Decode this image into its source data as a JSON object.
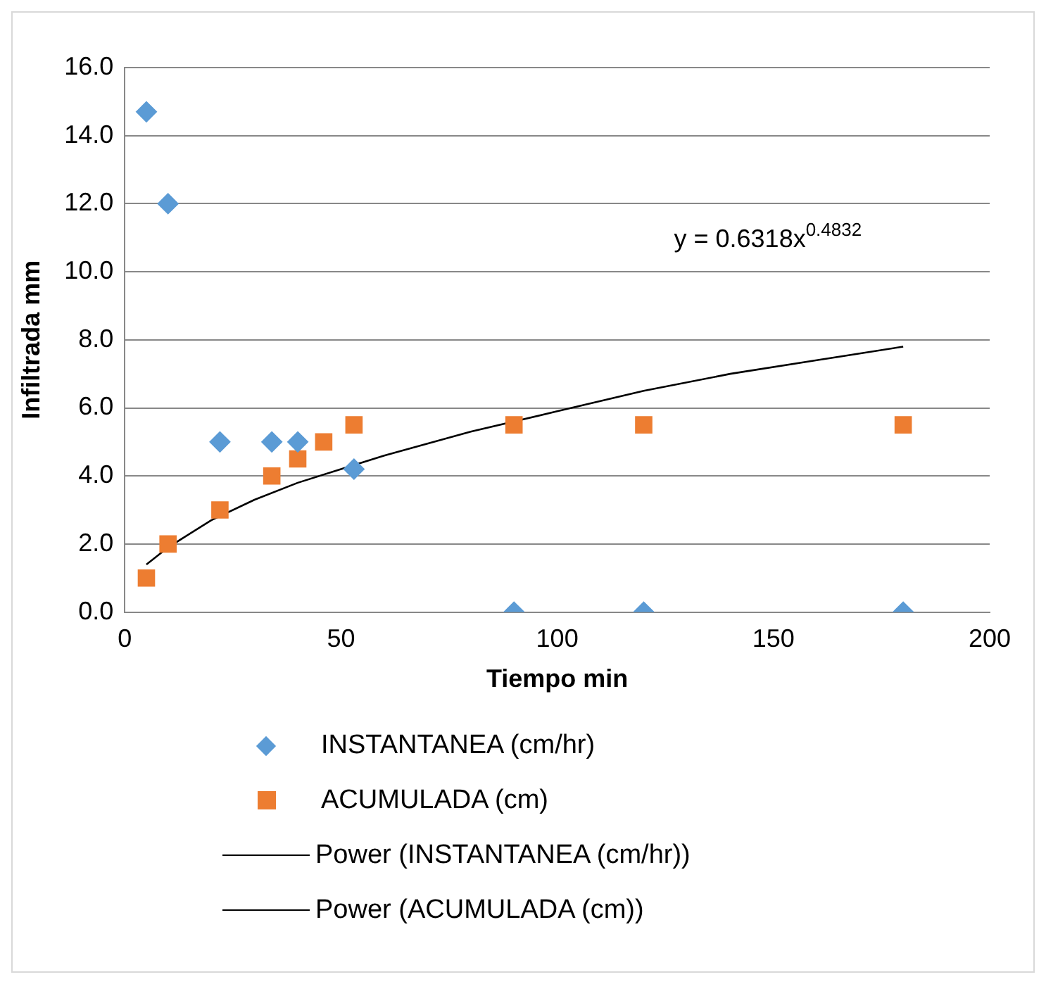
{
  "chart_data": {
    "type": "scatter",
    "xlabel": "Tiempo min",
    "ylabel": "Infiltrada mm",
    "xlim": [
      0,
      200
    ],
    "xticks": [
      0,
      50,
      100,
      150,
      200
    ],
    "ylim": [
      0,
      16
    ],
    "yticks": [
      {
        "value": 0,
        "label": "0.0"
      },
      {
        "value": 2,
        "label": "2.0"
      },
      {
        "value": 4,
        "label": "4.0"
      },
      {
        "value": 6,
        "label": "6.0"
      },
      {
        "value": 8,
        "label": "8.0"
      },
      {
        "value": 10,
        "label": "10.0"
      },
      {
        "value": 12,
        "label": "12.0"
      },
      {
        "value": 14,
        "label": "14.0"
      },
      {
        "value": 16,
        "label": "16.0"
      }
    ],
    "grid": "y",
    "legend": "bottom",
    "annotations": [
      "y = 0.6318x$^{0.4832}$"
    ],
    "series": [
      {
        "name": "INSTANTANEA (cm/hr)",
        "type": "scatter",
        "marker": "diamond",
        "color": "#5b9bd5",
        "x": [
          5,
          10,
          22,
          34,
          40,
          53,
          90,
          120,
          180
        ],
        "values": [
          14.7,
          12.0,
          5.0,
          5.0,
          5.0,
          4.2,
          0,
          0,
          0
        ]
      },
      {
        "name": "ACUMULADA (cm)",
        "type": "scatter",
        "marker": "square",
        "color": "#ed7d31",
        "x": [
          5,
          10,
          22,
          34,
          40,
          46,
          53,
          90,
          120,
          180
        ],
        "values": [
          1.0,
          2.0,
          3.0,
          4.0,
          4.5,
          5.0,
          5.5,
          5.5,
          5.5,
          5.5
        ]
      },
      {
        "name": "Power (INSTANTANEA (cm/hr))",
        "type": "line",
        "marker": "none",
        "color": "#000000"
      },
      {
        "name": "Power (ACUMULADA (cm))",
        "type": "line",
        "marker": "none",
        "color": "#000000",
        "x": [
          5,
          10,
          20,
          30,
          40,
          50,
          60,
          80,
          100,
          120,
          140,
          160,
          180
        ],
        "values": [
          1.4,
          1.9,
          2.7,
          3.3,
          3.8,
          4.2,
          4.6,
          5.3,
          5.9,
          6.5,
          7.0,
          7.4,
          7.8
        ]
      }
    ]
  }
}
